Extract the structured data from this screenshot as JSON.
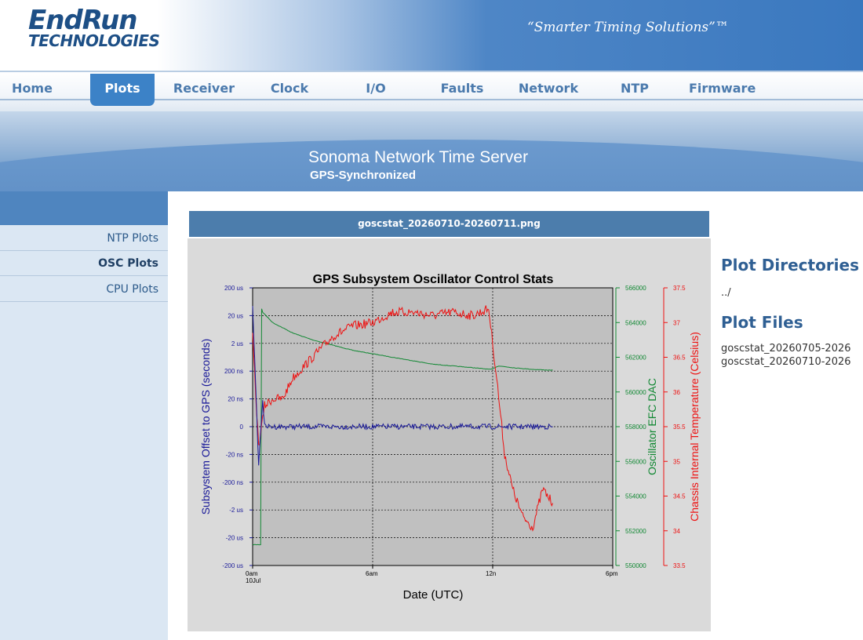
{
  "header": {
    "logo_line1": "EndRun",
    "logo_line2": "TECHNOLOGIES",
    "tagline": "“Smarter Timing Solutions”™"
  },
  "nav": {
    "items": [
      "Home",
      "Plots",
      "Receiver",
      "Clock",
      "I/O",
      "Faults",
      "Network",
      "NTP",
      "Firmware"
    ],
    "active": "Plots"
  },
  "banner": {
    "title": "Sonoma Network Time Server",
    "subtitle": "GPS-Synchronized"
  },
  "sidebar": {
    "items": [
      "NTP Plots",
      "OSC Plots",
      "CPU Plots"
    ],
    "active": "OSC Plots"
  },
  "plot": {
    "filename": "goscstat_20260710-20260711.png"
  },
  "right_panel": {
    "dirs_heading": "Plot Directories",
    "dir_link": "../",
    "files_heading": "Plot Files",
    "files": [
      "goscstat_20260705-2026",
      "goscstat_20260710-2026"
    ]
  },
  "chart_data": {
    "type": "line",
    "title": "GPS Subsystem Oscillator Control Stats",
    "xlabel": "Date (UTC)",
    "x_ticks": [
      "0am\n10Jul",
      "6am",
      "12n",
      "6pm"
    ],
    "x_range_hours": [
      0,
      18
    ],
    "y_left": {
      "label": "Subsystem Offset to GPS (seconds)",
      "color": "#1a1a99",
      "scale": "signed-log",
      "ticks": [
        "200 us",
        "20 us",
        "2 us",
        "200 ns",
        "20 ns",
        "0",
        "-20 ns",
        "-200 ns",
        "-2 us",
        "-20 us",
        "-200 us"
      ]
    },
    "y_right1": {
      "label": "Oscillator EFC DAC",
      "color": "#118833",
      "ticks": [
        566000,
        564000,
        562000,
        560000,
        558000,
        556000,
        554000,
        552000,
        550000
      ],
      "range": [
        550000,
        566000
      ]
    },
    "y_right2": {
      "label": "Chassis Internal Temperature (Celsius)",
      "color": "#ee1111",
      "ticks": [
        37.5,
        37,
        36.5,
        36,
        35.5,
        35,
        34.5,
        34,
        33.5
      ],
      "range": [
        33.5,
        37.5
      ]
    },
    "series": [
      {
        "name": "Oscillator EFC DAC",
        "axis": "right1",
        "x": [
          0,
          0.4,
          0.45,
          0.5,
          1,
          2,
          3,
          4,
          5,
          6,
          7,
          8,
          9,
          10,
          11,
          11.9,
          12.3,
          13,
          14,
          15
        ],
        "values": [
          551200,
          551200,
          564800,
          564600,
          564000,
          563400,
          563000,
          562700,
          562400,
          562200,
          562000,
          561800,
          561600,
          561500,
          561400,
          561300,
          561500,
          561400,
          561300,
          561250
        ]
      },
      {
        "name": "Chassis Internal Temperature",
        "axis": "right2",
        "x": [
          0,
          0.3,
          0.6,
          1,
          1.5,
          2,
          3,
          4,
          5,
          6,
          7,
          8,
          9,
          10,
          11,
          11.8,
          12.2,
          12.6,
          13,
          13.5,
          14,
          14.5,
          15
        ],
        "values": [
          36.8,
          35.2,
          35.8,
          35.9,
          35.9,
          36.2,
          36.5,
          36.8,
          36.95,
          37.0,
          37.15,
          37.15,
          37.1,
          37.15,
          37.1,
          37.2,
          36.2,
          35.1,
          34.6,
          34.2,
          34.05,
          34.6,
          34.4
        ]
      },
      {
        "name": "Subsystem Offset to GPS",
        "axis": "left",
        "x": [
          0,
          0.3,
          0.5,
          0.6,
          0.8,
          1,
          2,
          3,
          4,
          5,
          6,
          7,
          8,
          9,
          10,
          11,
          12,
          13,
          14,
          15
        ],
        "values": [
          "50 us",
          "-50 ns",
          "20 ns",
          "0",
          "0",
          "0",
          "0",
          "0",
          "0",
          "0",
          "0",
          "0",
          "0",
          "0",
          "0",
          "0",
          "0",
          "0",
          "0",
          "0"
        ]
      }
    ],
    "grid": true,
    "legend": "none"
  }
}
